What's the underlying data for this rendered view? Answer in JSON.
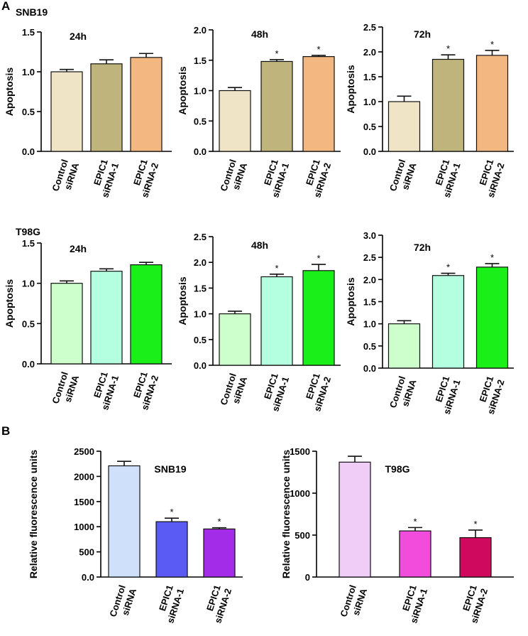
{
  "panel_a": {
    "letter": "A",
    "group_1": "SNB19",
    "group_2": "T98G"
  },
  "panel_b": {
    "letter": "B"
  },
  "chart_data": [
    {
      "type": "bar",
      "title": "24h",
      "ylabel": "Apoptosis",
      "xlabel": "",
      "categories": [
        "Control\nsiRNA",
        "EPIC1\nsiRNA-1",
        "EPIC1\nsiRNA-2"
      ],
      "values": [
        1.0,
        1.1,
        1.18
      ],
      "errors": [
        0.03,
        0.05,
        0.05
      ],
      "significance": [
        "",
        "",
        ""
      ],
      "colors": [
        "#efe5c6",
        "#beb47c",
        "#f3b882"
      ],
      "ylim": [
        0,
        1.5
      ],
      "yticks": [
        "0.0",
        "0.5",
        "1.0",
        "1.5"
      ],
      "grid": false
    },
    {
      "type": "bar",
      "title": "48h",
      "ylabel": "Apoptosis",
      "xlabel": "",
      "categories": [
        "Control\nsiRNA",
        "EPIC1\nsiRNA-1",
        "EPIC1\nsiRNA-2"
      ],
      "values": [
        1.0,
        1.48,
        1.56
      ],
      "errors": [
        0.05,
        0.03,
        0.02
      ],
      "significance": [
        "",
        "*",
        "*"
      ],
      "colors": [
        "#efe5c6",
        "#beb47c",
        "#f3b882"
      ],
      "ylim": [
        0,
        2.0
      ],
      "yticks": [
        "0.0",
        "0.5",
        "1.0",
        "1.5",
        "2.0"
      ],
      "grid": false
    },
    {
      "type": "bar",
      "title": "72h",
      "ylabel": "Apoptosis",
      "xlabel": "",
      "categories": [
        "Control\nsiRNA",
        "EPIC1\nsiRNA-1",
        "EPIC1\nsiRNA-2"
      ],
      "values": [
        1.0,
        1.85,
        1.93
      ],
      "errors": [
        0.11,
        0.09,
        0.1
      ],
      "significance": [
        "",
        "*",
        "*"
      ],
      "colors": [
        "#efe5c6",
        "#beb47c",
        "#f3b882"
      ],
      "ylim": [
        0,
        2.5
      ],
      "yticks": [
        "0.0",
        "0.5",
        "1.0",
        "1.5",
        "2.0",
        "2.5"
      ],
      "grid": false
    },
    {
      "type": "bar",
      "title": "24h",
      "ylabel": "Apoptosis",
      "xlabel": "",
      "categories": [
        "Control\nsiRNA",
        "EPIC1\nsiRNA-1",
        "EPIC1\nsiRNA-2"
      ],
      "values": [
        1.0,
        1.15,
        1.23
      ],
      "errors": [
        0.03,
        0.03,
        0.03
      ],
      "significance": [
        "",
        "",
        ""
      ],
      "colors": [
        "#ccffcc",
        "#b3ffe0",
        "#1aef1a"
      ],
      "ylim": [
        0,
        1.5
      ],
      "yticks": [
        "0.0",
        "0.5",
        "1.0",
        "1.5"
      ],
      "grid": false
    },
    {
      "type": "bar",
      "title": "48h",
      "ylabel": "Apoptosis",
      "xlabel": "",
      "categories": [
        "Control\nsiRNA",
        "EPIC1\nsiRNA-1",
        "EPIC1\nsiRNA-2"
      ],
      "values": [
        1.0,
        1.72,
        1.84
      ],
      "errors": [
        0.05,
        0.05,
        0.12
      ],
      "significance": [
        "",
        "*",
        "*"
      ],
      "colors": [
        "#ccffcc",
        "#b3ffe0",
        "#1aef1a"
      ],
      "ylim": [
        0,
        2.5
      ],
      "yticks": [
        "0.0",
        "0.5",
        "1.0",
        "1.5",
        "2.0",
        "2.5"
      ],
      "grid": false
    },
    {
      "type": "bar",
      "title": "72h",
      "ylabel": "Apoptosis",
      "xlabel": "",
      "categories": [
        "Control\nsiRNA",
        "EPIC1\nsiRNA-1",
        "EPIC1\nsiRNA-2"
      ],
      "values": [
        1.0,
        2.09,
        2.28
      ],
      "errors": [
        0.07,
        0.05,
        0.08
      ],
      "significance": [
        "",
        "*",
        "*"
      ],
      "colors": [
        "#ccffcc",
        "#b3ffe0",
        "#1aef1a"
      ],
      "ylim": [
        0,
        3.0
      ],
      "yticks": [
        "0.0",
        "0.5",
        "1.0",
        "1.5",
        "2.0",
        "2.5",
        "3.0"
      ],
      "grid": false
    },
    {
      "type": "bar",
      "title": "SNB19",
      "ylabel": "Relative fluorescence units",
      "xlabel": "",
      "categories": [
        "Control\nsiRNA",
        "EPIC1\nsiRNA-1",
        "EPIC1\nsiRNA-2"
      ],
      "values": [
        2210,
        1100,
        955
      ],
      "errors": [
        90,
        70,
        25
      ],
      "significance": [
        "",
        "*",
        "*"
      ],
      "colors": [
        "#cfe0fa",
        "#5a5af5",
        "#a32ce8"
      ],
      "ylim": [
        0,
        2500
      ],
      "yticks": [
        "0.0",
        "500",
        "1000",
        "1500",
        "2000",
        "2500"
      ],
      "grid": false
    },
    {
      "type": "bar",
      "title": "T98G",
      "ylabel": "Relative fluorescence units",
      "xlabel": "",
      "categories": [
        "Control\nsiRNA",
        "EPIC1\nsiRNA-1",
        "EPIC1\nsiRNA-2"
      ],
      "values": [
        1370,
        550,
        470
      ],
      "errors": [
        70,
        40,
        90
      ],
      "significance": [
        "",
        "*",
        "*"
      ],
      "colors": [
        "#efcdf7",
        "#f24cdc",
        "#cf0a5e"
      ],
      "ylim": [
        0,
        1500
      ],
      "yticks": [
        "0",
        "500",
        "1000",
        "1500"
      ],
      "grid": false
    }
  ]
}
